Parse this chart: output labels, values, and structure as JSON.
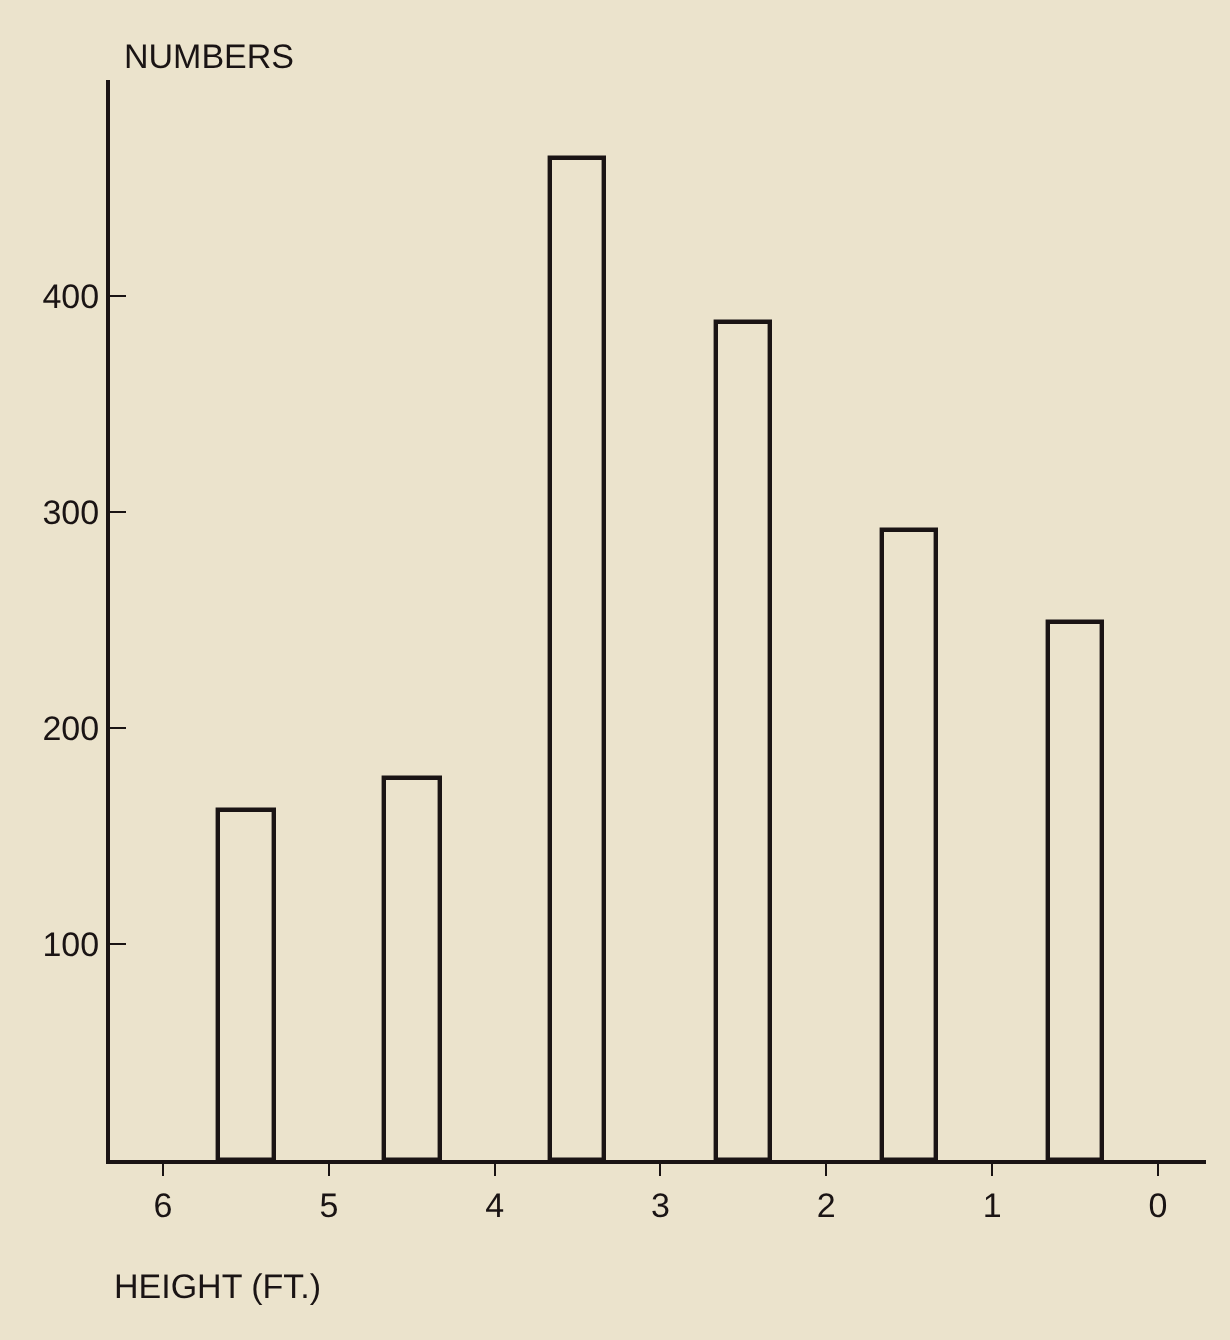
{
  "chart_data": {
    "type": "bar",
    "xlabel": "HEIGHT (FT.)",
    "ylabel": "NUMBERS",
    "x": [
      5.5,
      4.5,
      3.5,
      2.5,
      1.5,
      0.5
    ],
    "series": [
      {
        "color": "#1a1414",
        "values": [
          162,
          177,
          464,
          388,
          292,
          249
        ]
      }
    ],
    "xlim": [
      6.32,
      -0.29
    ],
    "xticks": [
      6,
      5,
      4,
      3,
      2,
      1,
      0
    ],
    "ylim": [
      0,
      500
    ],
    "yticks": [
      {
        "value": 0,
        "label": null
      },
      100,
      200,
      300,
      400
    ],
    "tick_labels": true
  }
}
